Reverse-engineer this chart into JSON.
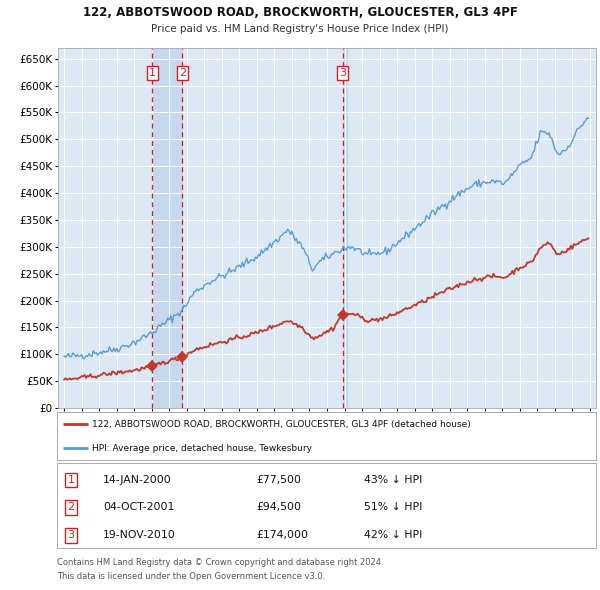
{
  "title": "122, ABBOTSWOOD ROAD, BROCKWORTH, GLOUCESTER, GL3 4PF",
  "subtitle": "Price paid vs. HM Land Registry's House Price Index (HPI)",
  "legend_red": "122, ABBOTSWOOD ROAD, BROCKWORTH, GLOUCESTER, GL3 4PF (detached house)",
  "legend_blue": "HPI: Average price, detached house, Tewkesbury",
  "footer1": "Contains HM Land Registry data © Crown copyright and database right 2024.",
  "footer2": "This data is licensed under the Open Government Licence v3.0.",
  "sale_labels": [
    "1",
    "2",
    "3"
  ],
  "sale_dates_str": [
    "14-JAN-2000",
    "04-OCT-2001",
    "19-NOV-2010"
  ],
  "sale_prices_str": [
    "£77,500",
    "£94,500",
    "£174,000"
  ],
  "sale_hpi_str": [
    "43% ↓ HPI",
    "51% ↓ HPI",
    "42% ↓ HPI"
  ],
  "sale_dates_num": [
    2000.0384,
    2001.7507,
    2010.8849
  ],
  "sale_prices": [
    77500,
    94500,
    174000
  ],
  "yticks": [
    0,
    50000,
    100000,
    150000,
    200000,
    250000,
    300000,
    350000,
    400000,
    450000,
    500000,
    550000,
    600000,
    650000
  ],
  "ylim_max": 670000,
  "xlim_min": 1994.65,
  "xlim_max": 2025.35,
  "bg_color": "#dce9f5",
  "red_color": "#c0392b",
  "blue_color": "#5b9bd5",
  "vline_color": "#cc2222",
  "grid_color": "#ffffff",
  "shade_color": "#c5d8ef",
  "title_fontsize": 8.5,
  "subtitle_fontsize": 7.5
}
